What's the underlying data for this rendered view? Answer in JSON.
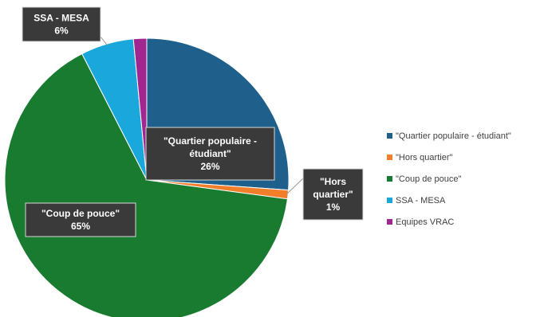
{
  "chart_data": {
    "type": "pie",
    "title": "",
    "slices": [
      {
        "category": "\"Quartier populaire - étudiant\"",
        "value": 26,
        "percent_label": "26%",
        "label_lines": [
          "\"Quartier populaire -",
          "étudiant\""
        ],
        "color": "#1F5F8B"
      },
      {
        "category": "\"Hors quartier\"",
        "value": 1,
        "percent_label": "1%",
        "label_lines": [
          "\"Hors",
          "quartier\""
        ],
        "color": "#F07E2B"
      },
      {
        "category": "\"Coup de pouce\"",
        "value": 65,
        "percent_label": "65%",
        "label_lines": [
          "\"Coup de pouce\""
        ],
        "color": "#197B30"
      },
      {
        "category": "SSA - MESA",
        "value": 6,
        "percent_label": "6%",
        "label_lines": [
          "SSA - MESA"
        ],
        "color": "#19A7DC"
      },
      {
        "category": "Equipes VRAC",
        "value": 1.5,
        "percent_label": "",
        "label_lines": [],
        "color": "#A0278F"
      }
    ],
    "legend_position": "right",
    "start_angle_deg": 0,
    "direction": "clockwise"
  }
}
